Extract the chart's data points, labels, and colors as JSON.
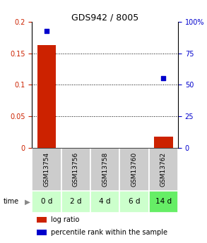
{
  "title": "GDS942 / 8005",
  "samples": [
    "GSM13754",
    "GSM13756",
    "GSM13758",
    "GSM13760",
    "GSM13762"
  ],
  "time_labels": [
    "0 d",
    "2 d",
    "4 d",
    "6 d",
    "14 d"
  ],
  "log_ratio": [
    0.163,
    0.0,
    0.0,
    0.0,
    0.018
  ],
  "percentile_rank": [
    93.0,
    0.0,
    0.0,
    0.0,
    55.0
  ],
  "ylim_left": [
    0,
    0.2
  ],
  "ylim_right": [
    0,
    100
  ],
  "yticks_left": [
    0,
    0.05,
    0.1,
    0.15,
    0.2
  ],
  "yticks_right": [
    0,
    25,
    50,
    75,
    100
  ],
  "bar_color": "#cc2200",
  "dot_color": "#0000cc",
  "sample_bg": "#cccccc",
  "time_bg_colors": [
    "#ccffcc",
    "#ccffcc",
    "#ccffcc",
    "#ccffcc",
    "#66ee66"
  ],
  "title_fontsize": 9,
  "tick_fontsize": 7,
  "label_fontsize": 6.5,
  "time_fontsize": 7.5,
  "legend_fontsize": 7
}
